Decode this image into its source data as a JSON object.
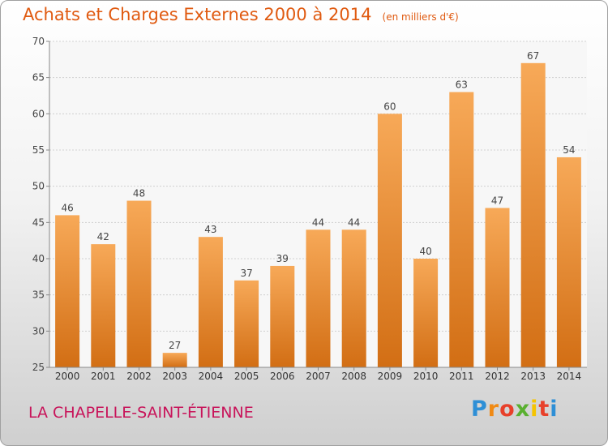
{
  "chart_data": {
    "type": "bar",
    "title": "Achats et Charges Externes 2000 à 2014",
    "unit": "(en milliers d'€)",
    "xlabel": "",
    "ylabel": "",
    "categories": [
      "2000",
      "2001",
      "2002",
      "2003",
      "2004",
      "2005",
      "2006",
      "2007",
      "2008",
      "2009",
      "2010",
      "2011",
      "2012",
      "2013",
      "2014"
    ],
    "values": [
      46,
      42,
      48,
      27,
      43,
      37,
      39,
      44,
      44,
      60,
      40,
      63,
      47,
      67,
      54
    ],
    "ylim": [
      25,
      70
    ],
    "yticks": [
      25,
      30,
      35,
      40,
      45,
      50,
      55,
      60,
      65,
      70
    ],
    "grid": true,
    "bar_color_top": "#f7a958",
    "bar_color_bottom": "#d26e14"
  },
  "footer": {
    "town": "LA CHAPELLE-SAINT-ÉTIENNE",
    "logo_letters": [
      "P",
      "r",
      "o",
      "x",
      "i",
      "t",
      "i"
    ],
    "logo_colors": [
      "#2e8fd6",
      "#f08a14",
      "#e8402a",
      "#5ab030",
      "#f5c400",
      "#e8402a",
      "#2e8fd6"
    ]
  }
}
